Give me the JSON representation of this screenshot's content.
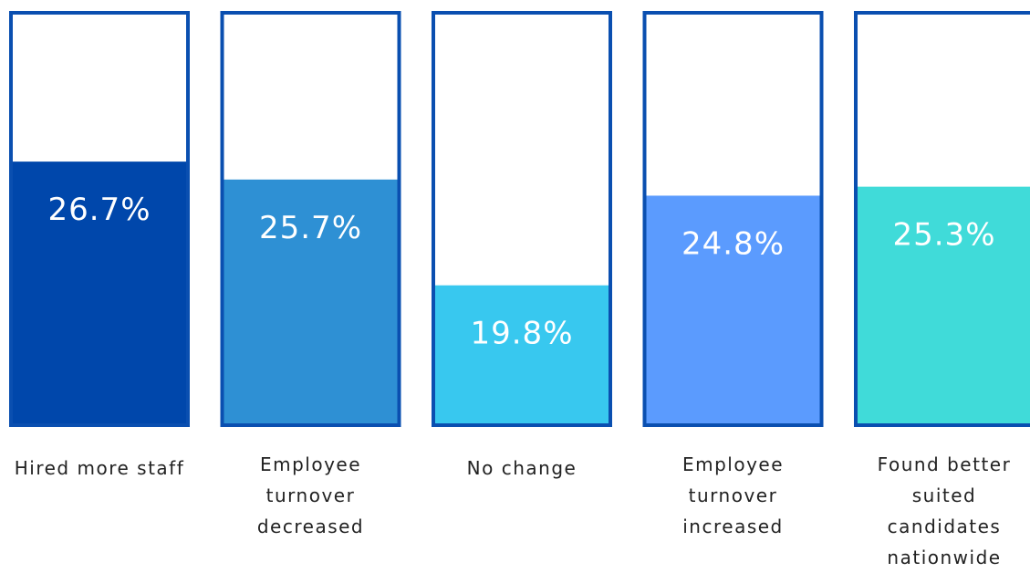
{
  "chart_data": {
    "type": "bar",
    "categories": [
      "Hired more staff",
      "Employee turnover decreased",
      "No change",
      "Employee turnover increased",
      "Found better suited candidates nationwide"
    ],
    "values": [
      26.7,
      25.7,
      19.8,
      24.8,
      25.3
    ],
    "value_labels": [
      "26.7%",
      "25.7%",
      "19.8%",
      "24.8%",
      "25.3%"
    ],
    "colors": [
      "#0047ab",
      "#2e90d4",
      "#38c8ef",
      "#5b9bfe",
      "#40dbd9"
    ],
    "frame_color": "#0a4fb0",
    "ylim": [
      12,
      35
    ]
  }
}
